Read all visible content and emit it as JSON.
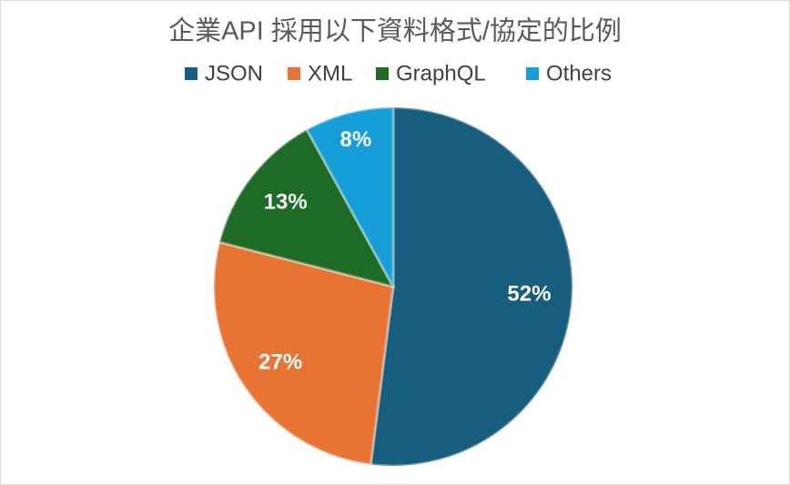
{
  "chart_data": {
    "type": "pie",
    "title": "企業API 採用以下資料格式/協定的比例",
    "categories": [
      "JSON",
      "XML",
      "GraphQL",
      "Others"
    ],
    "values": [
      52,
      27,
      13,
      8
    ],
    "value_labels": [
      "52%",
      "27%",
      "13%",
      "8%"
    ],
    "colors": [
      "#175d7e",
      "#e87434",
      "#1e6b25",
      "#159ed8"
    ],
    "legend": "top"
  }
}
